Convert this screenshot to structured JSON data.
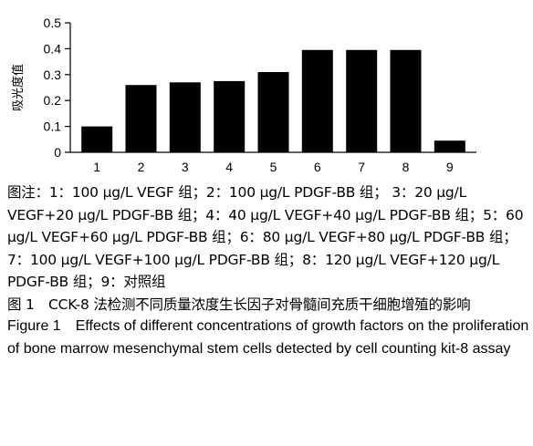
{
  "chart_data": {
    "type": "bar",
    "categories": [
      "1",
      "2",
      "3",
      "4",
      "5",
      "6",
      "7",
      "8",
      "9"
    ],
    "values": [
      0.1,
      0.26,
      0.27,
      0.275,
      0.31,
      0.395,
      0.395,
      0.395,
      0.045
    ],
    "title": "",
    "xlabel": "",
    "ylabel": "吸光度值",
    "ylim": [
      0,
      0.5
    ],
    "yticks": [
      "0",
      "0.1",
      "0.2",
      "0.3",
      "0.4",
      "0.5"
    ],
    "grid": false,
    "legend": "none",
    "bar_color": "#000000"
  },
  "caption": {
    "note": "图注：1：100 μg/L VEGF 组；2：100 μg/L PDGF-BB 组； 3：20 μg/L VEGF+20 μg/L PDGF-BB 组；4：40 μg/L VEGF+40 μg/L PDGF-BB 组；5：60 μg/L VEGF+60 μg/L PDGF-BB 组；6：80 μg/L VEGF+80 μg/L PDGF-BB 组；7：100 μg/L VEGF+100 μg/L PDGF-BB 组；8：120 μg/L VEGF+120 μg/L PDGF-BB 组；9：对照组",
    "title_cn": "图 1　CCK-8 法检测不同质量浓度生长因子对骨髓间充质干细胞增殖的影响",
    "title_en": "Figure 1　Effects of different concentrations of growth factors on the proliferation of bone marrow mesenchymal stem cells detected by cell counting kit-8 assay"
  }
}
